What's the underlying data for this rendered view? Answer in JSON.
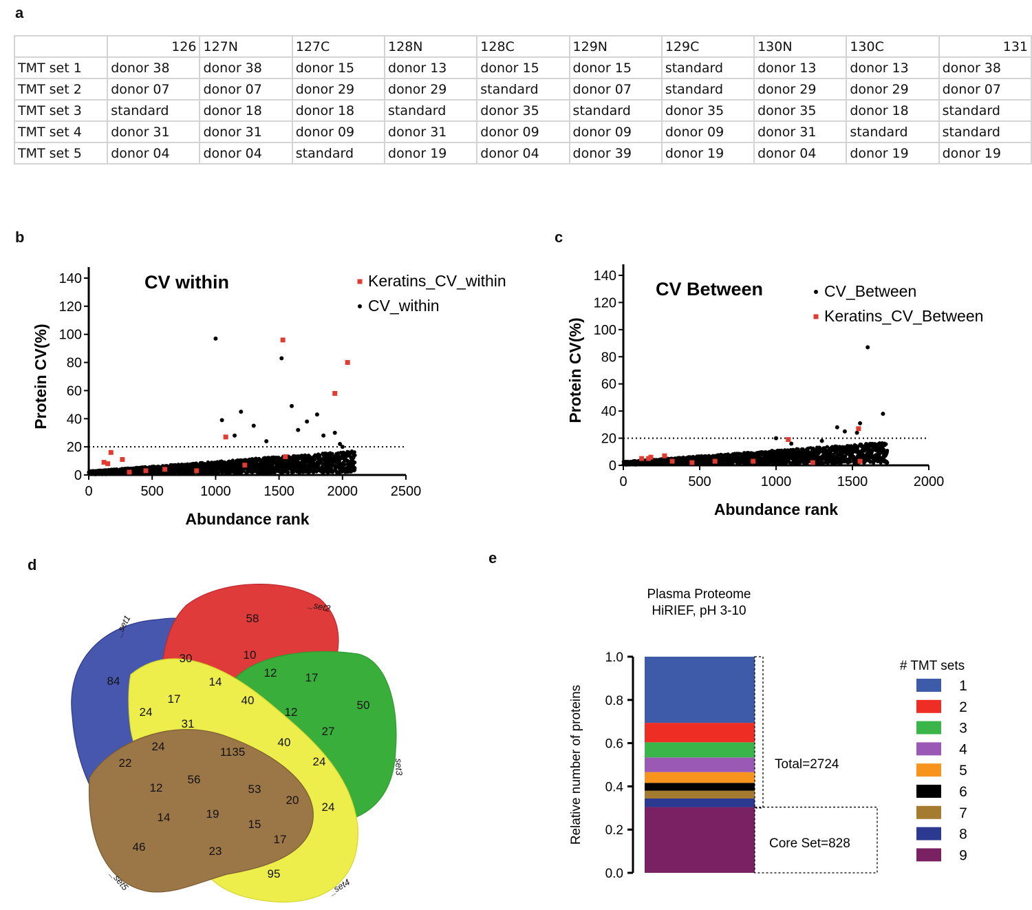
{
  "panel_labels": {
    "a": "a",
    "b": "b",
    "c": "c",
    "d": "d",
    "e": "e"
  },
  "table": {
    "header": [
      "",
      "126",
      "127N",
      "127C",
      "128N",
      "128C",
      "129N",
      "129C",
      "130N",
      "130C",
      "131"
    ],
    "rows": [
      [
        "TMT set 1",
        "donor 38",
        "donor 38",
        "donor 15",
        "donor 13",
        "donor 15",
        "donor 15",
        "standard",
        "donor 13",
        "donor 13",
        "donor 38"
      ],
      [
        "TMT set 2",
        "donor 07",
        "donor 07",
        "donor 29",
        "donor 29",
        "standard",
        "donor 07",
        "standard",
        "donor 29",
        "donor 29",
        "donor 07"
      ],
      [
        "TMT set 3",
        "standard",
        "donor 18",
        "donor 18",
        "standard",
        "donor 35",
        "standard",
        "donor 35",
        "donor 35",
        "donor 18",
        "standard"
      ],
      [
        "TMT set 4",
        "donor 31",
        "donor 31",
        "donor 09",
        "donor 31",
        "donor 09",
        "donor 09",
        "donor 09",
        "donor 31",
        "standard",
        "standard"
      ],
      [
        "TMT set 5",
        "donor 04",
        "donor 04",
        "standard",
        "donor 19",
        "donor 04",
        "donor 39",
        "donor 19",
        "donor 04",
        "donor 19",
        "donor 19"
      ]
    ]
  },
  "colors": {
    "keratin": "#e03c31",
    "point": "#000000",
    "axis": "#000000"
  },
  "chart_data": [
    {
      "id": "b",
      "type": "scatter",
      "title": "CV within",
      "xlabel": "Abundance rank",
      "ylabel": "Protein CV(%)",
      "xlim": [
        0,
        2500
      ],
      "ylim": [
        0,
        140
      ],
      "xticks": [
        "0",
        "500",
        "1000",
        "1500",
        "2000",
        "2500"
      ],
      "yticks": [
        "0",
        "20",
        "40",
        "60",
        "80",
        "100",
        "120",
        "140"
      ],
      "threshold": 20,
      "n_points": 2100,
      "series": [
        {
          "name": "Keratins_CV_within",
          "color": "#e03c31",
          "points": [
            [
              120,
              9
            ],
            [
              150,
              8
            ],
            [
              175,
              16
            ],
            [
              265,
              11
            ],
            [
              320,
              2
            ],
            [
              450,
              3
            ],
            [
              600,
              4
            ],
            [
              850,
              3
            ],
            [
              1080,
              27
            ],
            [
              1230,
              7
            ],
            [
              1530,
              96
            ],
            [
              1550,
              13
            ],
            [
              1940,
              58
            ],
            [
              2040,
              80
            ]
          ]
        },
        {
          "name": "CV_within",
          "color": "#000000",
          "points": [
            [
              1000,
              97
            ],
            [
              1520,
              83
            ],
            [
              1050,
              39
            ],
            [
              1200,
              45
            ],
            [
              1600,
              49
            ],
            [
              1720,
              38
            ],
            [
              1800,
              43
            ],
            [
              1980,
              22
            ],
            [
              1940,
              30
            ],
            [
              2000,
              20
            ],
            [
              1150,
              28
            ],
            [
              1300,
              35
            ],
            [
              1400,
              24
            ],
            [
              1650,
              32
            ],
            [
              1850,
              28
            ]
          ]
        }
      ]
    },
    {
      "id": "c",
      "type": "scatter",
      "title": "CV Between",
      "xlabel": "Abundance rank",
      "ylabel": "Protein CV(%)",
      "xlim": [
        0,
        2000
      ],
      "ylim": [
        0,
        140
      ],
      "xticks": [
        "0",
        "500",
        "1000",
        "1500",
        "2000"
      ],
      "yticks": [
        "0",
        "20",
        "40",
        "60",
        "80",
        "100",
        "120",
        "140"
      ],
      "threshold": 20,
      "n_points": 1730,
      "series": [
        {
          "name": "CV_Between",
          "color": "#000000",
          "points": [
            [
              1600,
              87
            ],
            [
              1700,
              38
            ],
            [
              1550,
              31
            ],
            [
              1400,
              28
            ],
            [
              1450,
              25
            ],
            [
              1530,
              24
            ],
            [
              1000,
              20
            ],
            [
              1300,
              18
            ],
            [
              1100,
              16
            ],
            [
              1650,
              14
            ]
          ]
        },
        {
          "name": "Keratins_CV_Between",
          "color": "#e03c31",
          "points": [
            [
              120,
              5
            ],
            [
              165,
              5
            ],
            [
              180,
              6
            ],
            [
              270,
              7
            ],
            [
              320,
              3
            ],
            [
              450,
              2
            ],
            [
              600,
              3
            ],
            [
              850,
              3
            ],
            [
              1080,
              19
            ],
            [
              1240,
              2
            ],
            [
              1540,
              27
            ],
            [
              1550,
              3
            ]
          ]
        }
      ]
    },
    {
      "id": "d",
      "type": "venn",
      "sets": [
        "_set1",
        "_set2",
        "set3",
        "_set4",
        "_set5"
      ],
      "colors": [
        "#4657ad",
        "#df3b3b",
        "#3aae3a",
        "#eded4c",
        "#9b7646"
      ],
      "region_counts": [
        "84",
        "58",
        "50",
        "95",
        "46",
        "30",
        "10",
        "12",
        "17",
        "14",
        "40",
        "12",
        "27",
        "17",
        "24",
        "31",
        "24",
        "22",
        "1135",
        "40",
        "24",
        "56",
        "53",
        "20",
        "24",
        "12",
        "14",
        "19",
        "15",
        "17",
        "23"
      ]
    },
    {
      "id": "e",
      "type": "bar",
      "title": "Plasma Proteome",
      "subtitle": "HiRIEF, pH 3-10",
      "ylabel": "Relative number of proteins",
      "ylim": [
        0,
        1
      ],
      "yticks": [
        "0.0",
        "0.2",
        "0.4",
        "0.6",
        "0.8",
        "1.0"
      ],
      "legend_title": "# TMT sets",
      "stack_order": [
        "9",
        "8",
        "7",
        "6",
        "5",
        "4",
        "3",
        "2",
        "1"
      ],
      "values": [
        0.304,
        0.04,
        0.036,
        0.036,
        0.05,
        0.068,
        0.07,
        0.09,
        0.306
      ],
      "colors": [
        "#7a2163",
        "#2b3990",
        "#a57c2f",
        "#000000",
        "#f7941d",
        "#9b59b6",
        "#39b54a",
        "#ee2e24",
        "#3e5ba9"
      ],
      "legend_items": [
        "1",
        "2",
        "3",
        "4",
        "5",
        "6",
        "7",
        "8",
        "9"
      ],
      "legend_colors": [
        "#3e5ba9",
        "#ee2e24",
        "#39b54a",
        "#9b59b6",
        "#f7941d",
        "#000000",
        "#a57c2f",
        "#2b3990",
        "#7a2163"
      ],
      "total_label": "Total=2724",
      "core_label": "Core Set=828"
    }
  ]
}
